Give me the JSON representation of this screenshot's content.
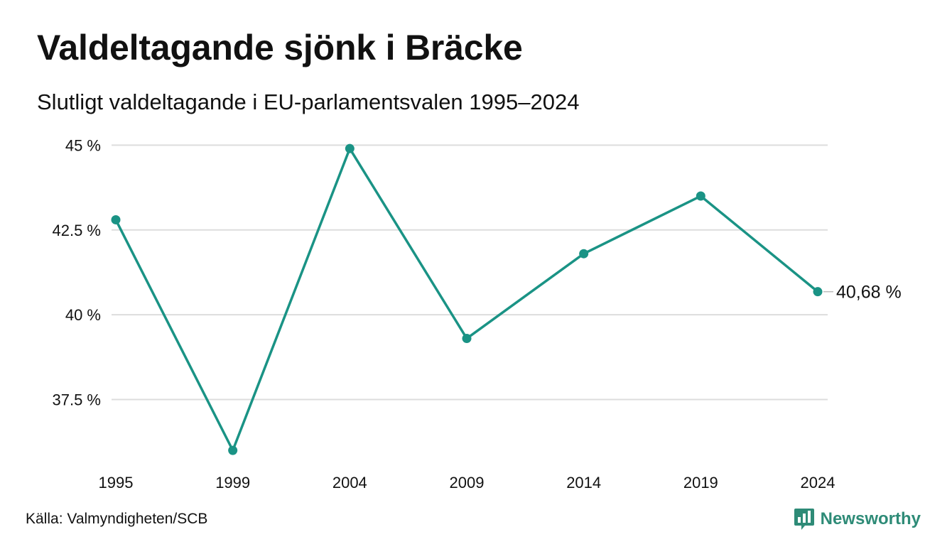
{
  "header": {
    "title": "Valdeltagande sjönk i Bräcke",
    "subtitle": "Slutligt valdeltagande i EU-parlamentsvalen 1995–2024"
  },
  "footer": {
    "source": "Källa: Valmyndigheten/SCB",
    "brand": "Newsworthy",
    "brand_icon": "bar-chart-speech-bubble-icon"
  },
  "colors": {
    "line": "#1a9385",
    "grid": "#dddddd",
    "brand": "#2e8b77",
    "text": "#111111"
  },
  "chart_data": {
    "type": "line",
    "title": "Valdeltagande sjönk i Bräcke",
    "subtitle": "Slutligt valdeltagande i EU-parlamentsvalen 1995–2024",
    "x": [
      "1995",
      "1999",
      "2004",
      "2009",
      "2014",
      "2019",
      "2024"
    ],
    "series": [
      {
        "values": [
          42.8,
          36.0,
          44.9,
          39.3,
          41.8,
          43.5,
          40.68
        ]
      }
    ],
    "y_ticks": [
      37.5,
      40,
      42.5,
      45
    ],
    "y_tick_labels": [
      "37.5 %",
      "40 %",
      "42.5 %",
      "45 %"
    ],
    "ylim": [
      35.8,
      45.2
    ],
    "end_label": "40,68 %",
    "grid": "horizontal",
    "legend": "none",
    "xlabel": "",
    "ylabel": ""
  }
}
